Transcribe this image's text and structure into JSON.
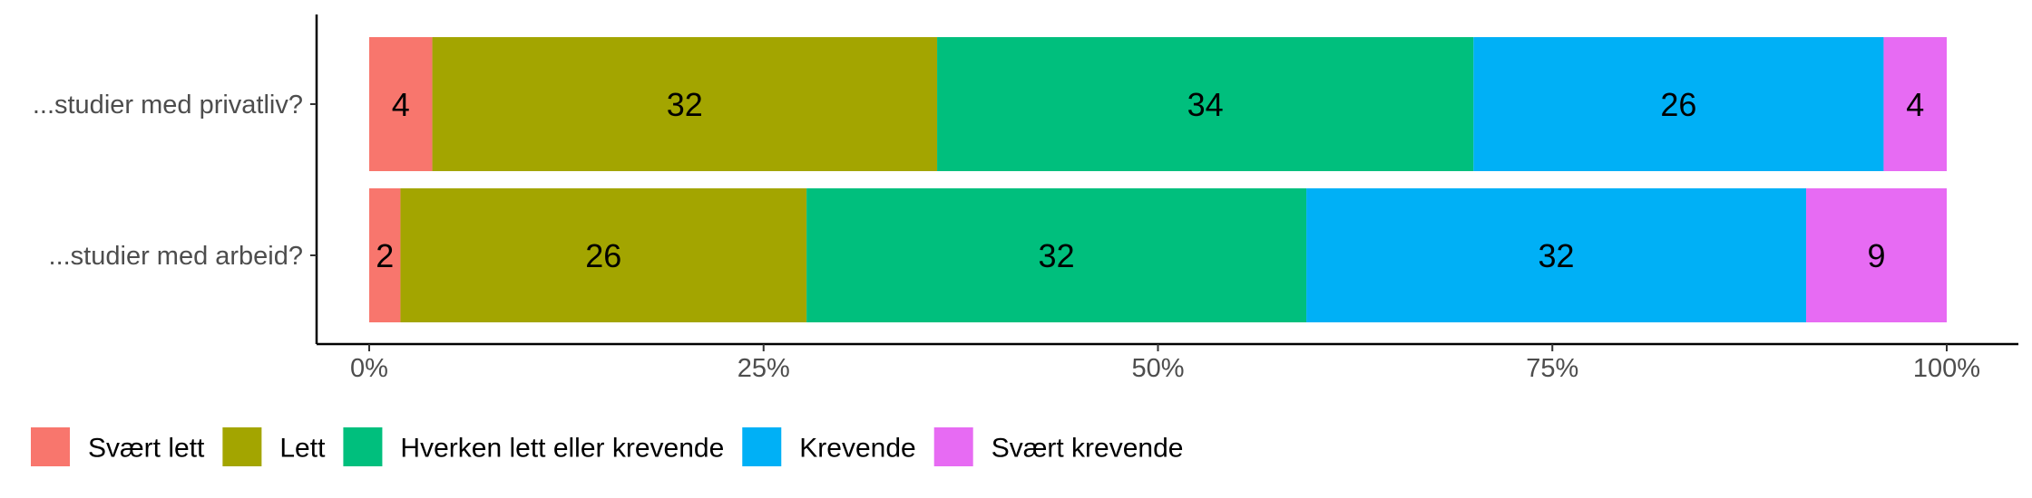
{
  "chart_data": {
    "type": "bar",
    "orientation": "horizontal",
    "stacked": true,
    "normalized_percent": true,
    "categories": [
      "...studier med privatliv?",
      "...studier med arbeid?"
    ],
    "series": [
      {
        "name": "Svært lett",
        "values": [
          4,
          2
        ],
        "color": "#F8766D"
      },
      {
        "name": "Lett",
        "values": [
          32,
          26
        ],
        "color": "#A3A500"
      },
      {
        "name": "Hverken lett eller krevende",
        "values": [
          34,
          32
        ],
        "color": "#00BF7D"
      },
      {
        "name": "Krevende",
        "values": [
          26,
          32
        ],
        "color": "#00B0F6"
      },
      {
        "name": "Svært krevende",
        "values": [
          4,
          9
        ],
        "color": "#E76BF3"
      }
    ],
    "xticks": [
      "0%",
      "25%",
      "50%",
      "75%",
      "100%"
    ],
    "xlim": [
      0,
      100
    ],
    "xlabel": "",
    "ylabel": "",
    "title": "",
    "grid": false,
    "legend": "bottom-left"
  }
}
